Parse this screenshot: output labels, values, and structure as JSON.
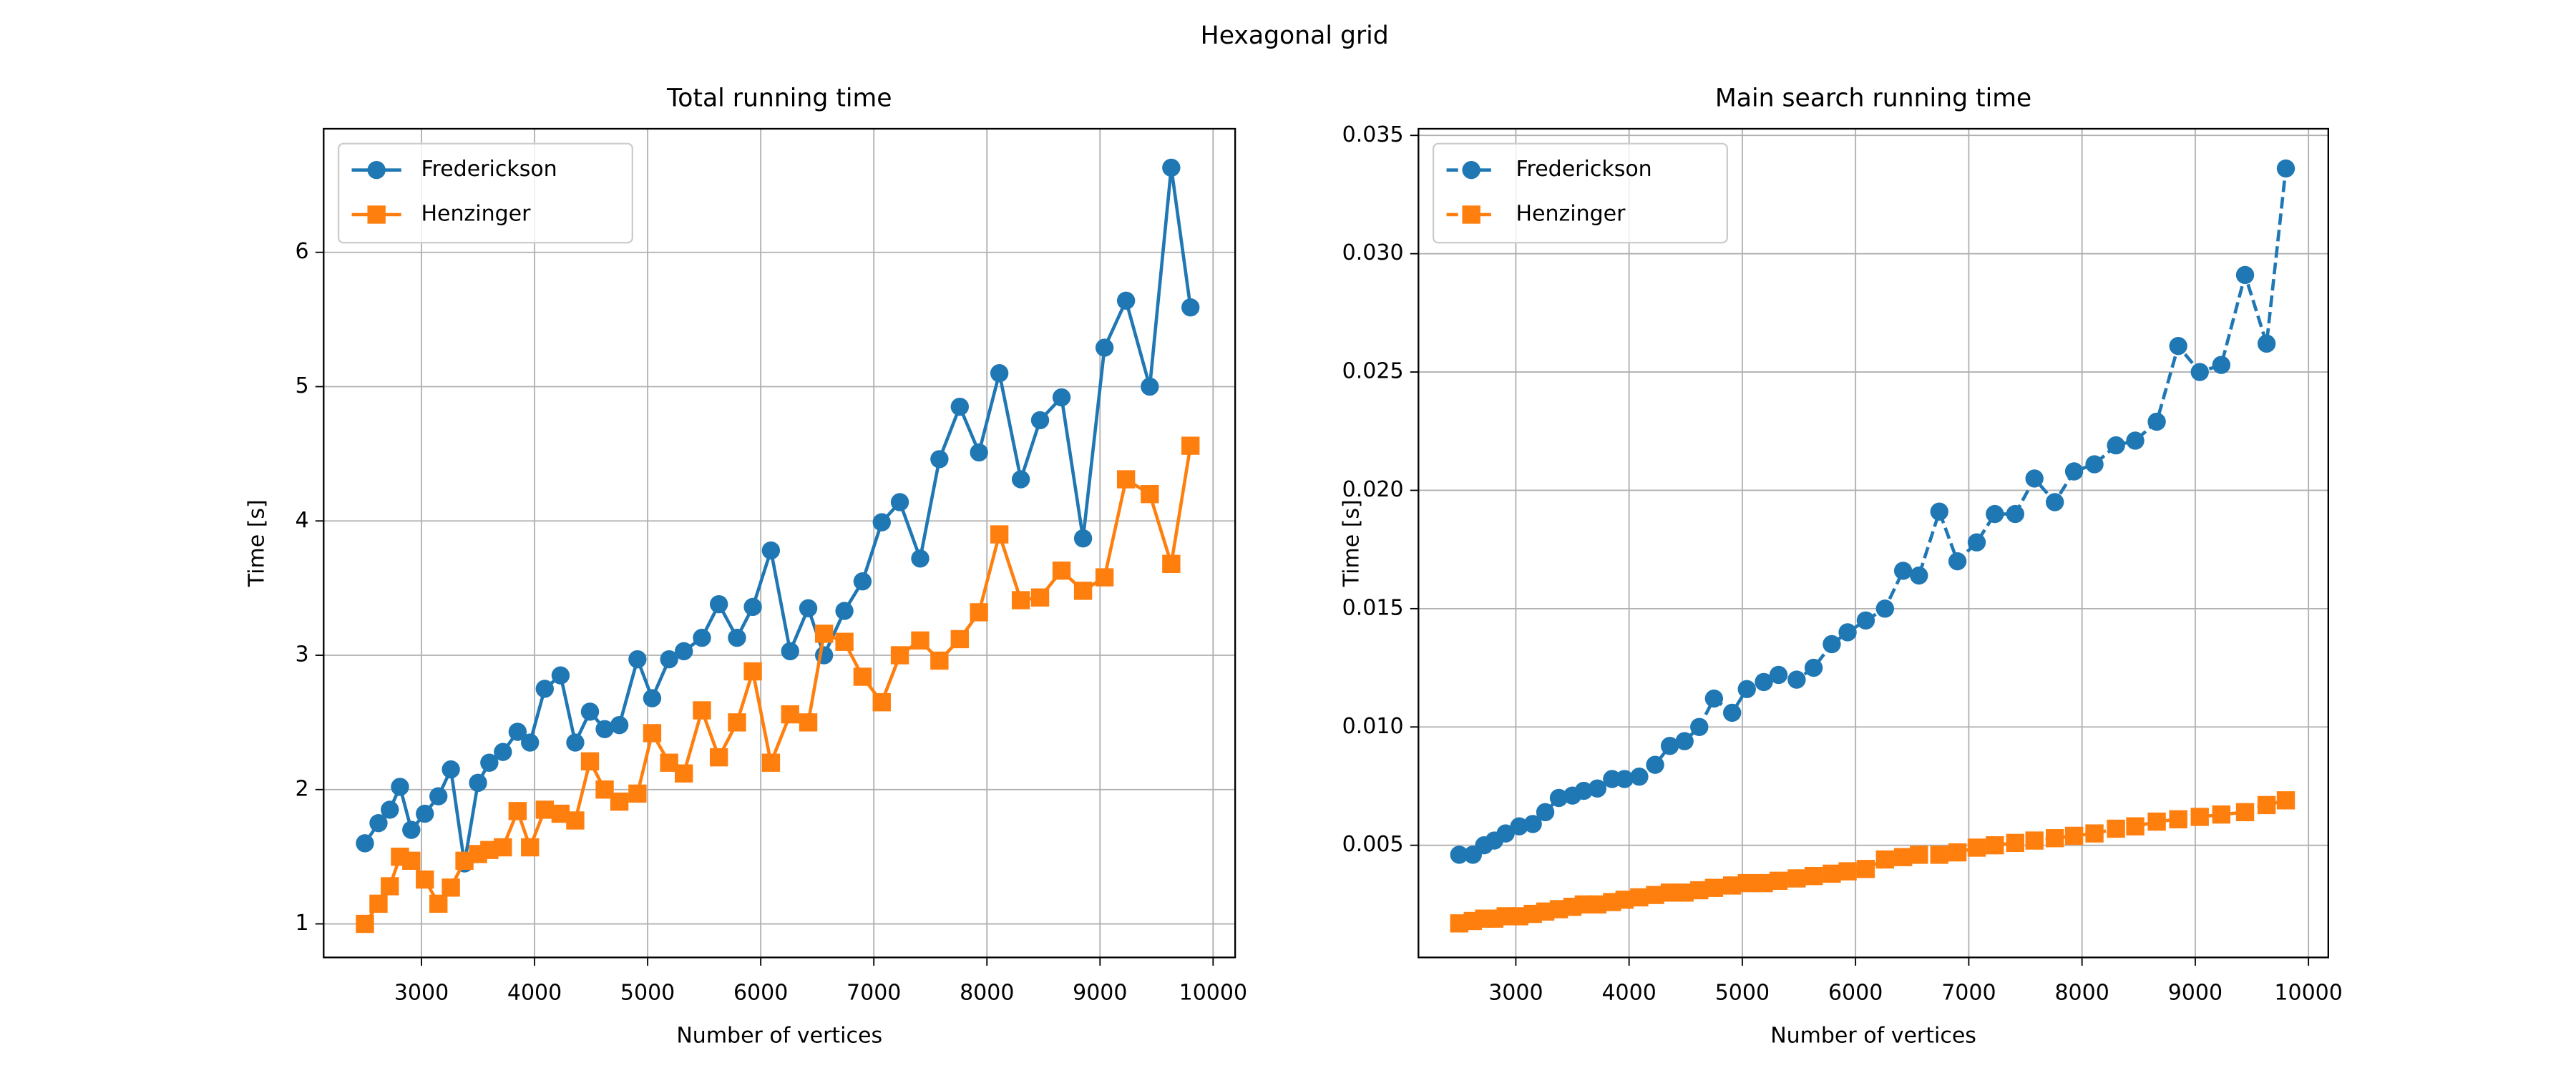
{
  "title": "Hexagonal grid",
  "chart_data": [
    {
      "type": "line",
      "title": "Total running time",
      "xlabel": "Number of vertices",
      "ylabel": "Time [s]",
      "x": [
        2500,
        2620,
        2720,
        2810,
        2910,
        3030,
        3150,
        3260,
        3380,
        3500,
        3600,
        3720,
        3850,
        3960,
        4090,
        4230,
        4360,
        4490,
        4620,
        4750,
        4910,
        5040,
        5190,
        5320,
        5480,
        5630,
        5790,
        5930,
        6090,
        6260,
        6420,
        6560,
        6740,
        6900,
        7070,
        7230,
        7410,
        7580,
        7760,
        7930,
        8110,
        8300,
        8470,
        8660,
        8850,
        9040,
        9230,
        9440,
        9630,
        9800
      ],
      "series": [
        {
          "name": "Frederickson",
          "color": "#1f77b4",
          "marker": "circle",
          "linestyle": "solid",
          "values": [
            1.6,
            1.75,
            1.85,
            2.02,
            1.7,
            1.82,
            1.95,
            2.15,
            1.45,
            2.05,
            2.2,
            2.28,
            2.43,
            2.35,
            2.75,
            2.85,
            2.35,
            2.58,
            2.45,
            2.48,
            2.97,
            2.68,
            2.97,
            3.03,
            3.13,
            3.38,
            3.13,
            3.36,
            3.78,
            3.03,
            3.35,
            3.0,
            3.33,
            3.55,
            3.99,
            4.14,
            3.72,
            4.46,
            4.85,
            4.51,
            5.1,
            4.31,
            4.75,
            4.92,
            3.87,
            5.29,
            5.64,
            5.0,
            6.63,
            5.59
          ]
        },
        {
          "name": "Henzinger",
          "color": "#ff7f0e",
          "marker": "square",
          "linestyle": "solid",
          "values": [
            1.0,
            1.15,
            1.28,
            1.5,
            1.47,
            1.33,
            1.15,
            1.27,
            1.47,
            1.52,
            1.55,
            1.57,
            1.84,
            1.57,
            1.85,
            1.82,
            1.77,
            2.21,
            2.0,
            1.91,
            1.97,
            2.42,
            2.2,
            2.12,
            2.59,
            2.24,
            2.5,
            2.88,
            2.2,
            2.56,
            2.5,
            3.16,
            3.1,
            2.84,
            2.65,
            3.0,
            3.11,
            2.96,
            3.12,
            3.32,
            3.9,
            3.41,
            3.43,
            3.63,
            3.48,
            3.58,
            4.31,
            4.2,
            3.68,
            4.56
          ]
        }
      ],
      "xlim": [
        2135,
        10195
      ],
      "xticks": [
        3000,
        4000,
        5000,
        6000,
        7000,
        8000,
        9000,
        10000
      ],
      "ylim": [
        0.75,
        6.92
      ],
      "yticks": [
        1,
        2,
        3,
        4,
        5,
        6
      ],
      "grid": true,
      "legend": "upper-left"
    },
    {
      "type": "line",
      "title": "Main search running time",
      "xlabel": "Number of vertices",
      "ylabel": "Time [s]",
      "x": [
        2500,
        2620,
        2720,
        2810,
        2910,
        3030,
        3150,
        3260,
        3380,
        3500,
        3600,
        3720,
        3850,
        3960,
        4090,
        4230,
        4360,
        4490,
        4620,
        4750,
        4910,
        5040,
        5190,
        5320,
        5480,
        5630,
        5790,
        5930,
        6090,
        6260,
        6420,
        6560,
        6740,
        6900,
        7070,
        7230,
        7410,
        7580,
        7760,
        7930,
        8110,
        8300,
        8470,
        8660,
        8850,
        9040,
        9230,
        9440,
        9630,
        9800
      ],
      "series": [
        {
          "name": "Frederickson",
          "color": "#1f77b4",
          "marker": "circle",
          "linestyle": "dashed",
          "values": [
            0.0046,
            0.0046,
            0.005,
            0.0052,
            0.0055,
            0.0058,
            0.0059,
            0.0064,
            0.007,
            0.0071,
            0.0073,
            0.0074,
            0.0078,
            0.0078,
            0.0079,
            0.0084,
            0.0092,
            0.0094,
            0.01,
            0.0112,
            0.0106,
            0.0116,
            0.0119,
            0.0122,
            0.012,
            0.0125,
            0.0135,
            0.014,
            0.0145,
            0.015,
            0.0166,
            0.0164,
            0.0191,
            0.017,
            0.0178,
            0.019,
            0.019,
            0.0205,
            0.0195,
            0.0208,
            0.0211,
            0.0219,
            0.0221,
            0.0229,
            0.0261,
            0.025,
            0.0253,
            0.0291,
            0.0262,
            0.0336
          ]
        },
        {
          "name": "Henzinger",
          "color": "#ff7f0e",
          "marker": "square",
          "linestyle": "dashed",
          "values": [
            0.0017,
            0.0018,
            0.0019,
            0.0019,
            0.002,
            0.002,
            0.0021,
            0.0022,
            0.0023,
            0.0024,
            0.0025,
            0.0025,
            0.0026,
            0.0027,
            0.0028,
            0.0029,
            0.003,
            0.003,
            0.0031,
            0.0032,
            0.0033,
            0.0034,
            0.0034,
            0.0035,
            0.0036,
            0.0037,
            0.0038,
            0.0039,
            0.004,
            0.0044,
            0.0045,
            0.0046,
            0.0046,
            0.0047,
            0.0049,
            0.005,
            0.0051,
            0.0052,
            0.0053,
            0.0054,
            0.0055,
            0.0057,
            0.0058,
            0.006,
            0.0061,
            0.0062,
            0.0063,
            0.0064,
            0.0067,
            0.0069
          ]
        }
      ],
      "xlim": [
        2140,
        10175
      ],
      "xticks": [
        3000,
        4000,
        5000,
        6000,
        7000,
        8000,
        9000,
        10000
      ],
      "ylim": [
        0.00026,
        0.03528
      ],
      "yticks": [
        0.005,
        {
          "value": 0.01,
          "label": "0.010"
        },
        0.015,
        {
          "value": 0.02,
          "label": "0.020"
        },
        0.025,
        {
          "value": 0.03,
          "label": "0.030"
        },
        0.035
      ],
      "grid": true,
      "legend": "upper-left"
    }
  ]
}
